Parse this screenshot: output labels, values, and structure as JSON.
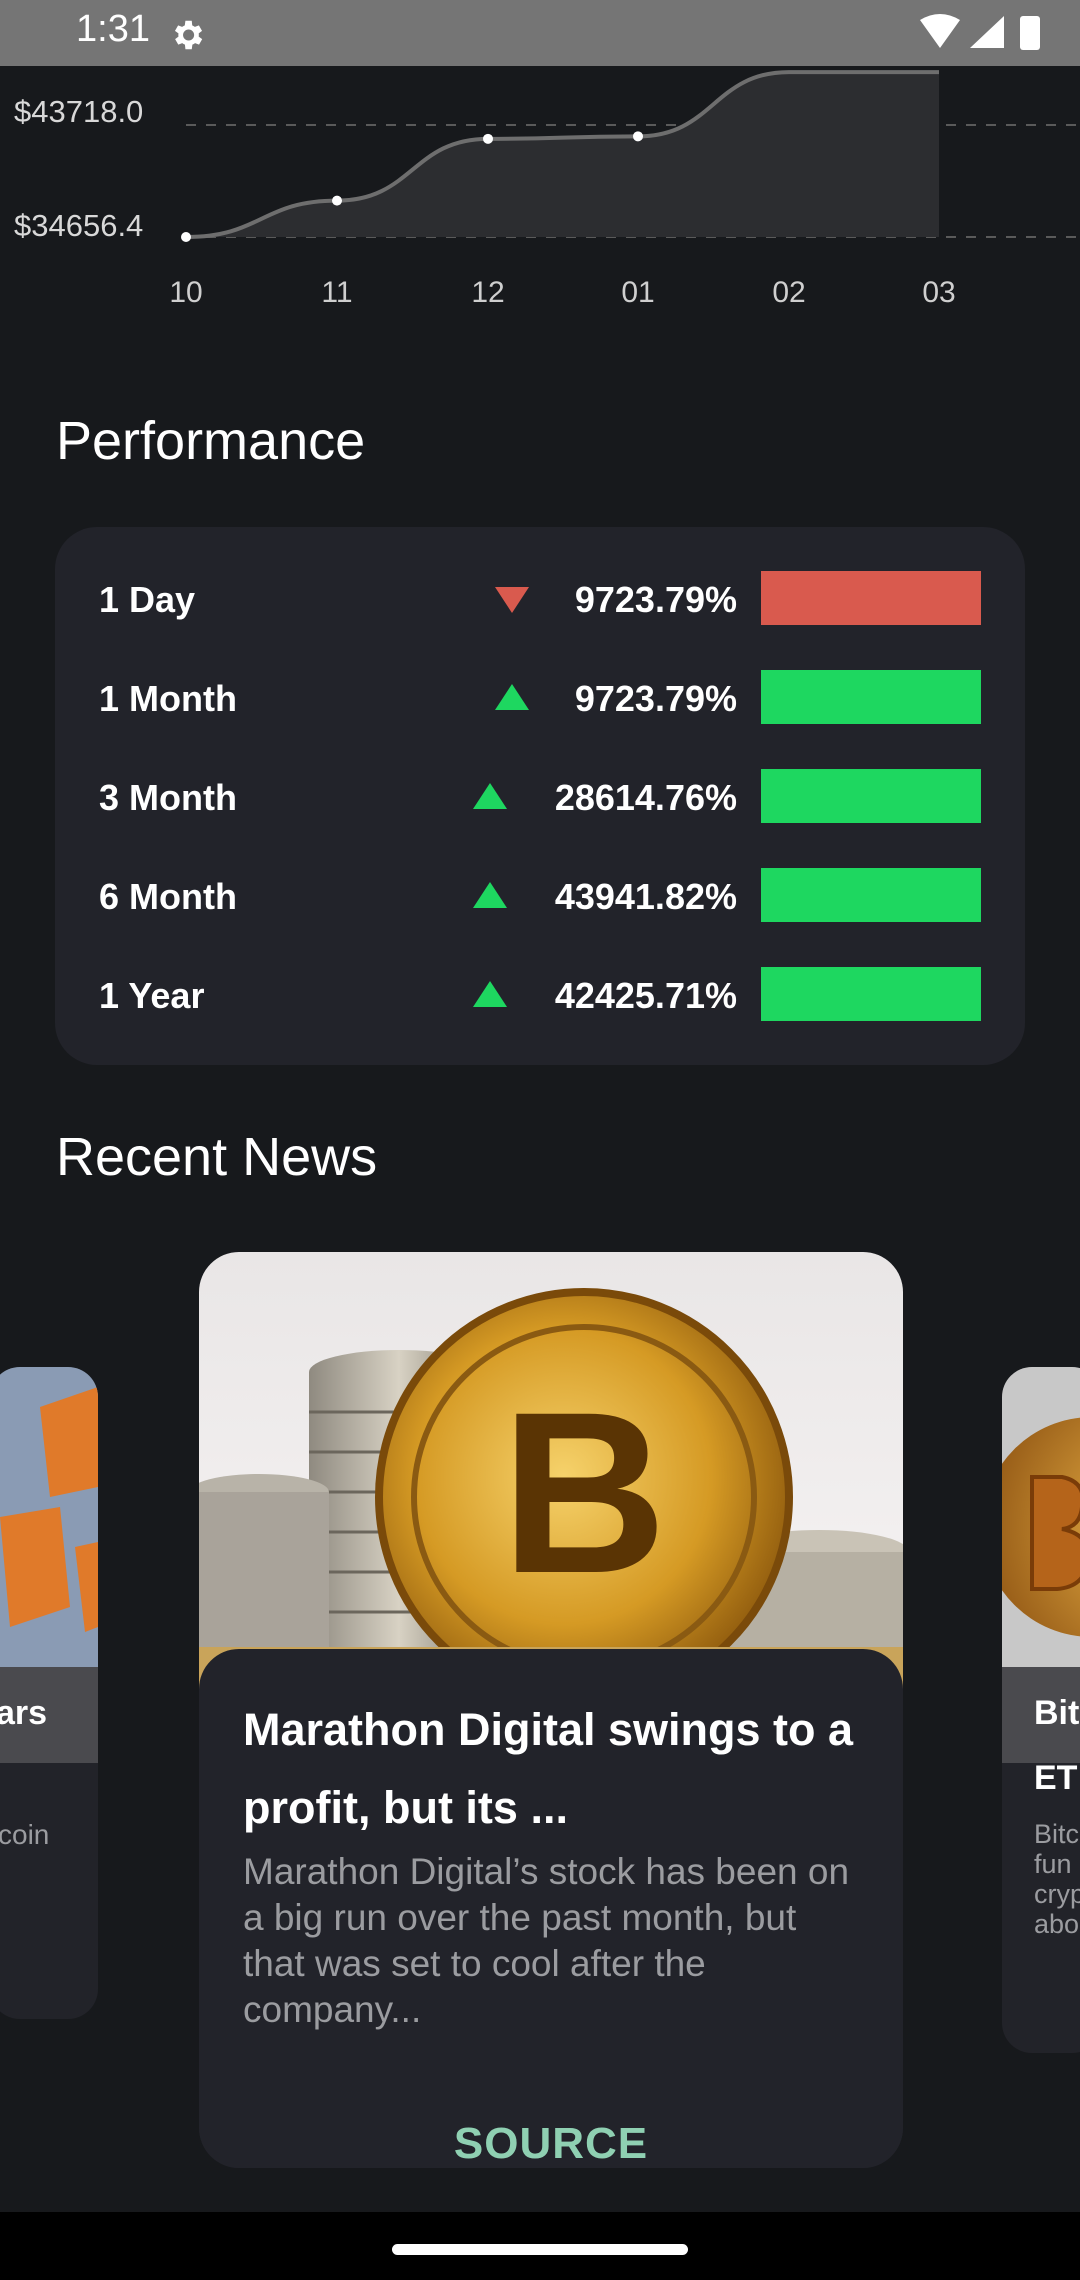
{
  "status_bar": {
    "time": "1:31"
  },
  "chart_data": {
    "type": "area",
    "x": [
      "10",
      "11",
      "12",
      "01",
      "02",
      "03"
    ],
    "y_labels": [
      "$43718.0",
      "$34656.4"
    ],
    "points": [
      {
        "x": "10",
        "y": 34656.4
      },
      {
        "x": "11",
        "y": 37600
      },
      {
        "x": "12",
        "y": 42600
      },
      {
        "x": "01",
        "y": 42800
      },
      {
        "x": "02",
        "y": 48000
      },
      {
        "x": "03",
        "y": 48000
      }
    ],
    "colors": {
      "line": "#6e6e6e",
      "fill": "#2c2d30",
      "points": "#ffffff"
    }
  },
  "performance": {
    "title": "Performance",
    "rows": [
      {
        "label": "1 Day",
        "value": "9723.79%",
        "direction": "down"
      },
      {
        "label": "1 Month",
        "value": "9723.79%",
        "direction": "up"
      },
      {
        "label": "3 Month",
        "value": "28614.76%",
        "direction": "up"
      },
      {
        "label": "6 Month",
        "value": "43941.82%",
        "direction": "up"
      },
      {
        "label": "1 Year",
        "value": "42425.71%",
        "direction": "up"
      }
    ],
    "colors": {
      "up": "#1ed760",
      "down": "#d95a4e"
    }
  },
  "news": {
    "title": "Recent News",
    "main": {
      "headline": "Marathon Digital swings to a profit, but its ...",
      "description": "Marathon Digital’s stock has been on a big run over the past month, but that was set to cool after the company...",
      "source_label": "SOURCE"
    },
    "left_card": {
      "title_fragment": "ars",
      "desc_fragment": "coin"
    },
    "right_card": {
      "title_fragment_1": "Bit",
      "title_fragment_2": "ET",
      "desc_lines": [
        "Bitc",
        "fun",
        "cryp",
        "abo"
      ]
    }
  }
}
